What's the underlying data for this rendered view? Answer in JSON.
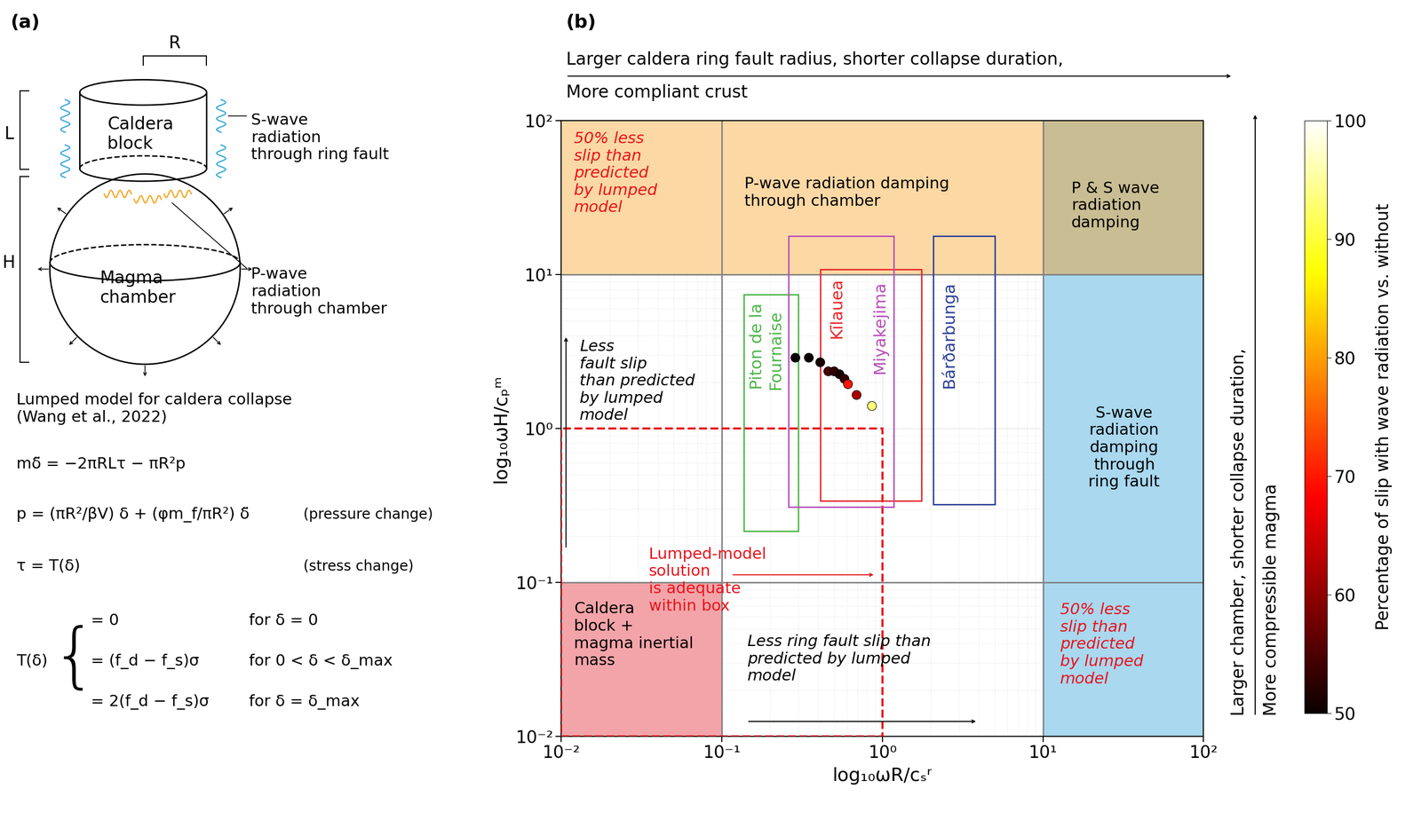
{
  "panel_a": {
    "label": "(a)",
    "dimensions": {
      "R": "R",
      "L": "L",
      "H": "H"
    },
    "caldera": "Caldera\nblock",
    "chamber": "Magma\nchamber",
    "s_wave": "S-wave\nradiation\nthrough ring fault",
    "p_wave": "P-wave\nradiation\nthrough chamber",
    "model_title": "Lumped model for caldera collapse\n(Wang et al., 2022)",
    "equations": [
      {
        "equation": "mδ̈ = −2πRLτ − πR²p"
      },
      {
        "equation": "p = (πR²/βV) δ + (φm_f/πR²) δ̈",
        "note": "(pressure change)"
      },
      {
        "equation": "τ = T(δ)",
        "note": "(stress change)"
      }
    ],
    "piecewise": {
      "lhs": "T(δ)",
      "brace": "{",
      "cases": [
        {
          "value": "= 0",
          "condition": "for δ = 0"
        },
        {
          "value": "= (f_d − f_s)σ",
          "condition": "for 0 < δ < δ_max"
        },
        {
          "value": "= 2(f_d − f_s)σ",
          "condition": "for δ = δ_max"
        }
      ]
    }
  },
  "chart_data": {
    "type": "scatter",
    "panel_label": "(b)",
    "log": true,
    "grid": true,
    "marker": "o",
    "xlabel": "log₁₀ωR/cₛʳ",
    "ylabel": "log₁₀ωH/cₚᵐ",
    "xlim": [
      0.01,
      100
    ],
    "ylim": [
      0.01,
      100
    ],
    "xticks": [
      {
        "value": 0.01,
        "label": "10⁻²"
      },
      {
        "value": 0.1,
        "label": "10⁻¹"
      },
      {
        "value": 1,
        "label": "10⁰"
      },
      {
        "value": 10,
        "label": "10¹"
      },
      {
        "value": 100,
        "label": "10²"
      }
    ],
    "yticks": [
      {
        "value": 0.01,
        "label": "10⁻²"
      },
      {
        "value": 0.1,
        "label": "10⁻¹"
      },
      {
        "value": 1,
        "label": "10⁰"
      },
      {
        "value": 10,
        "label": "10¹"
      },
      {
        "value": 100,
        "label": "10²"
      }
    ],
    "x": [
      0.287,
      0.348,
      0.41,
      0.46,
      0.5,
      0.54,
      0.58,
      0.61,
      0.69,
      0.86
    ],
    "y": [
      2.88,
      2.88,
      2.69,
      2.35,
      2.35,
      2.25,
      2.1,
      1.94,
      1.65,
      1.4
    ],
    "percent": [
      50,
      50,
      51,
      55,
      53,
      51,
      53,
      70,
      62,
      93
    ],
    "colorbar": {
      "label": "Percentage of slip with wave radiation vs. without",
      "range": [
        50,
        100
      ],
      "ticks": [
        50,
        60,
        70,
        80,
        90,
        100
      ]
    },
    "regions": [
      {
        "x": [
          0.01,
          10
        ],
        "y": [
          10,
          100
        ],
        "color": "#fcd8a4"
      },
      {
        "x": [
          10,
          100
        ],
        "y": [
          10,
          100
        ],
        "color": "#c9bd93"
      },
      {
        "x": [
          10,
          100
        ],
        "y": [
          0.01,
          10
        ],
        "color": "#a9d8ef"
      },
      {
        "x": [
          0.01,
          0.1
        ],
        "y": [
          0.01,
          0.1
        ],
        "color": "#f3a4a8"
      }
    ],
    "divisions": {
      "x": [
        0.1,
        10
      ],
      "y": [
        0.1,
        10
      ],
      "color": "#808080"
    },
    "adequate_box": {
      "x": [
        0.01,
        1
      ],
      "y": [
        0.01,
        1
      ],
      "color": "#e8141b",
      "line_style": "dashed"
    },
    "volcanoes": [
      {
        "name": "Piton de la\nFournaise",
        "x": [
          0.137,
          0.3
        ],
        "y": [
          0.216,
          7.4
        ],
        "color": "#4cb648"
      },
      {
        "name": "Kīlauea",
        "x": [
          0.41,
          1.75
        ],
        "y": [
          0.34,
          10.8
        ],
        "color": "#e8262a"
      },
      {
        "name": "Miyakejima",
        "x": [
          0.26,
          1.18
        ],
        "y": [
          0.31,
          17.8
        ],
        "color": "#b84fbb"
      },
      {
        "name": "Bárðarbunga",
        "x": [
          2.07,
          5.0
        ],
        "y": [
          0.32,
          17.8
        ],
        "color": "#2e3f98"
      }
    ],
    "annotations": [
      {
        "text": "50% less\nslip than\npredicted\nby lumped\nmodel",
        "color": "#e8141b"
      },
      {
        "text": "P-wave radiation damping\nthrough chamber",
        "color": "#000000"
      },
      {
        "text": "P & S wave\nradiation\ndamping",
        "color": "#000000"
      },
      {
        "text": "S-wave\nradiation\ndamping\nthrough\nring fault",
        "color": "#000000"
      },
      {
        "text": "50% less\nslip than\npredicted\nby lumped\nmodel",
        "color": "#e8141b"
      },
      {
        "text": "Caldera\nblock +\nmagma inertial\nmass",
        "color": "#000000"
      },
      {
        "text": "Less\nfault slip\nthan predicted\nby lumped\nmodel",
        "color": "#000000"
      },
      {
        "text": "Lumped-model\nsolution\nis adequate\nwithin box",
        "color": "#e8141b"
      },
      {
        "text": "Less ring fault slip than\npredicted by lumped\nmodel",
        "color": "#000000"
      }
    ],
    "top_note": [
      "Larger caldera ring fault radius, shorter collapse duration,",
      "More compliant crust"
    ],
    "right_note": [
      "Larger chamber, shorter collapse duration,",
      "More compressible magma"
    ]
  }
}
